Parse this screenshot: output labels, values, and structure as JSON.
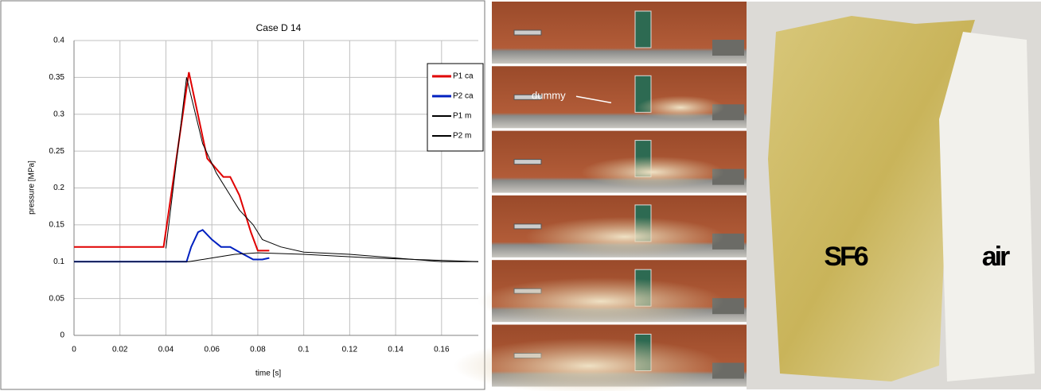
{
  "chart_data": {
    "type": "line",
    "title": "Case D 14",
    "x_label": "time [s]",
    "y_label": "pressure [MPa]",
    "xlim": [
      0,
      0.176
    ],
    "xticks": [
      0,
      0.02,
      0.04,
      0.06,
      0.08,
      0.1,
      0.12,
      0.14,
      0.16
    ],
    "ylim": [
      0,
      0.4
    ],
    "yticks": [
      0,
      0.05,
      0.1,
      0.15,
      0.2,
      0.25,
      0.3,
      0.35,
      0.4
    ],
    "grid": true,
    "legend": "right",
    "series": [
      {
        "name": "P1 ca",
        "color": "#e00000",
        "width": 2,
        "x": [
          0,
          0.039,
          0.05,
          0.058,
          0.065,
          0.068,
          0.072,
          0.077,
          0.08,
          0.085
        ],
        "values": [
          0.12,
          0.12,
          0.357,
          0.24,
          0.215,
          0.215,
          0.19,
          0.14,
          0.115,
          0.115
        ]
      },
      {
        "name": "P2 ca",
        "color": "#0020c0",
        "width": 2,
        "x": [
          0,
          0.049,
          0.051,
          0.054,
          0.056,
          0.06,
          0.064,
          0.068,
          0.072,
          0.078,
          0.082,
          0.085
        ],
        "values": [
          0.1,
          0.1,
          0.12,
          0.14,
          0.143,
          0.13,
          0.12,
          0.12,
          0.113,
          0.103,
          0.103,
          0.105
        ]
      },
      {
        "name": "P1 m",
        "color": "#000000",
        "width": 1,
        "x": [
          0.04,
          0.049,
          0.056,
          0.062,
          0.068,
          0.072,
          0.078,
          0.082,
          0.09,
          0.1,
          0.12,
          0.14,
          0.16,
          0.176
        ],
        "values": [
          0.118,
          0.35,
          0.26,
          0.22,
          0.19,
          0.17,
          0.15,
          0.13,
          0.12,
          0.113,
          0.11,
          0.105,
          0.1,
          0.1
        ]
      },
      {
        "name": "P2 m",
        "color": "#000000",
        "width": 1,
        "x": [
          0,
          0.05,
          0.06,
          0.07,
          0.08,
          0.1,
          0.13,
          0.176
        ],
        "values": [
          0.1,
          0.1,
          0.105,
          0.11,
          0.112,
          0.11,
          0.105,
          0.1
        ]
      }
    ]
  },
  "photos": {
    "annotation": "dummy",
    "left_label": "SF6",
    "right_label": "air"
  }
}
